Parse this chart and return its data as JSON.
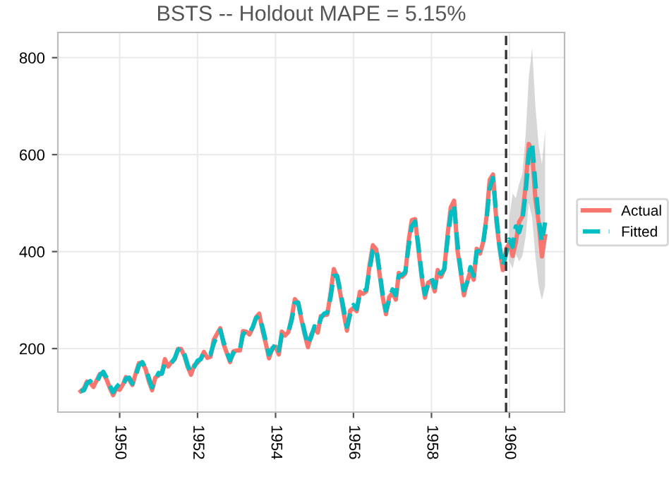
{
  "chart_data": {
    "type": "line",
    "title": "BSTS -- Holdout MAPE = 5.15%",
    "x": [
      "1949-01",
      "1949-02",
      "1949-03",
      "1949-04",
      "1949-05",
      "1949-06",
      "1949-07",
      "1949-08",
      "1949-09",
      "1949-10",
      "1949-11",
      "1949-12",
      "1950-01",
      "1950-02",
      "1950-03",
      "1950-04",
      "1950-05",
      "1950-06",
      "1950-07",
      "1950-08",
      "1950-09",
      "1950-10",
      "1950-11",
      "1950-12",
      "1951-01",
      "1951-02",
      "1951-03",
      "1951-04",
      "1951-05",
      "1951-06",
      "1951-07",
      "1951-08",
      "1951-09",
      "1951-10",
      "1951-11",
      "1951-12",
      "1952-01",
      "1952-02",
      "1952-03",
      "1952-04",
      "1952-05",
      "1952-06",
      "1952-07",
      "1952-08",
      "1952-09",
      "1952-10",
      "1952-11",
      "1952-12",
      "1953-01",
      "1953-02",
      "1953-03",
      "1953-04",
      "1953-05",
      "1953-06",
      "1953-07",
      "1953-08",
      "1953-09",
      "1953-10",
      "1953-11",
      "1953-12",
      "1954-01",
      "1954-02",
      "1954-03",
      "1954-04",
      "1954-05",
      "1954-06",
      "1954-07",
      "1954-08",
      "1954-09",
      "1954-10",
      "1954-11",
      "1954-12",
      "1955-01",
      "1955-02",
      "1955-03",
      "1955-04",
      "1955-05",
      "1955-06",
      "1955-07",
      "1955-08",
      "1955-09",
      "1955-10",
      "1955-11",
      "1955-12",
      "1956-01",
      "1956-02",
      "1956-03",
      "1956-04",
      "1956-05",
      "1956-06",
      "1956-07",
      "1956-08",
      "1956-09",
      "1956-10",
      "1956-11",
      "1956-12",
      "1957-01",
      "1957-02",
      "1957-03",
      "1957-04",
      "1957-05",
      "1957-06",
      "1957-07",
      "1957-08",
      "1957-09",
      "1957-10",
      "1957-11",
      "1957-12",
      "1958-01",
      "1958-02",
      "1958-03",
      "1958-04",
      "1958-05",
      "1958-06",
      "1958-07",
      "1958-08",
      "1958-09",
      "1958-10",
      "1958-11",
      "1958-12",
      "1959-01",
      "1959-02",
      "1959-03",
      "1959-04",
      "1959-05",
      "1959-06",
      "1959-07",
      "1959-08",
      "1959-09",
      "1959-10",
      "1959-11",
      "1959-12",
      "1960-01",
      "1960-02",
      "1960-03",
      "1960-04",
      "1960-05",
      "1960-06",
      "1960-07",
      "1960-08",
      "1960-09",
      "1960-10",
      "1960-11",
      "1960-12"
    ],
    "series": [
      {
        "name": "Actual",
        "color": "#f8766d",
        "line_style": "solid",
        "values": [
          112,
          118,
          132,
          129,
          121,
          135,
          148,
          148,
          136,
          119,
          104,
          118,
          115,
          126,
          141,
          135,
          125,
          149,
          170,
          170,
          158,
          133,
          114,
          140,
          145,
          150,
          178,
          163,
          172,
          178,
          199,
          199,
          184,
          162,
          146,
          166,
          171,
          180,
          193,
          181,
          183,
          218,
          230,
          242,
          209,
          191,
          172,
          194,
          196,
          196,
          236,
          235,
          229,
          243,
          264,
          272,
          237,
          211,
          180,
          201,
          204,
          188,
          235,
          227,
          234,
          264,
          302,
          293,
          259,
          229,
          203,
          229,
          242,
          233,
          267,
          269,
          270,
          315,
          364,
          347,
          312,
          274,
          237,
          278,
          284,
          277,
          317,
          313,
          318,
          374,
          413,
          405,
          355,
          306,
          271,
          306,
          315,
          301,
          356,
          348,
          355,
          422,
          465,
          467,
          404,
          347,
          305,
          336,
          340,
          318,
          362,
          348,
          363,
          435,
          491,
          505,
          404,
          359,
          310,
          337,
          360,
          342,
          406,
          396,
          420,
          472,
          548,
          559,
          463,
          407,
          362,
          405,
          417,
          391,
          419,
          461,
          472,
          535,
          622,
          606,
          508,
          461,
          390,
          432
        ]
      },
      {
        "name": "Fitted",
        "color": "#00bfc4",
        "line_style": "dashed",
        "values": [
          112,
          114,
          128,
          133,
          126,
          130,
          145,
          152,
          140,
          124,
          110,
          120,
          128,
          122,
          138,
          140,
          128,
          144,
          165,
          172,
          160,
          140,
          120,
          134,
          150,
          148,
          170,
          168,
          170,
          180,
          196,
          203,
          188,
          166,
          150,
          162,
          175,
          178,
          192,
          186,
          188,
          210,
          226,
          238,
          214,
          194,
          176,
          190,
          200,
          198,
          228,
          238,
          232,
          244,
          262,
          268,
          244,
          216,
          188,
          198,
          210,
          196,
          228,
          232,
          234,
          258,
          294,
          295,
          264,
          234,
          208,
          224,
          246,
          240,
          262,
          272,
          274,
          306,
          350,
          350,
          318,
          282,
          245,
          270,
          290,
          282,
          312,
          318,
          322,
          364,
          402,
          408,
          362,
          312,
          278,
          300,
          322,
          310,
          350,
          352,
          358,
          410,
          452,
          462,
          412,
          354,
          312,
          332,
          346,
          326,
          358,
          354,
          364,
          424,
          476,
          498,
          418,
          364,
          320,
          336,
          368,
          350,
          400,
          402,
          418,
          466,
          530,
          552,
          474,
          412,
          370,
          395,
          425,
          410,
          452,
          440,
          462,
          520,
          600,
          625,
          540,
          470,
          420,
          460
        ],
        "lower": [
          null,
          null,
          null,
          null,
          null,
          null,
          null,
          null,
          null,
          null,
          null,
          null,
          null,
          null,
          null,
          null,
          null,
          null,
          null,
          null,
          null,
          null,
          null,
          null,
          null,
          null,
          null,
          null,
          null,
          null,
          null,
          null,
          null,
          null,
          null,
          null,
          null,
          null,
          null,
          null,
          null,
          null,
          null,
          null,
          null,
          null,
          null,
          null,
          null,
          null,
          null,
          null,
          null,
          null,
          null,
          null,
          null,
          null,
          null,
          null,
          null,
          null,
          null,
          null,
          null,
          null,
          null,
          null,
          null,
          null,
          null,
          null,
          null,
          null,
          null,
          null,
          null,
          null,
          null,
          null,
          null,
          null,
          null,
          null,
          null,
          null,
          null,
          null,
          null,
          null,
          null,
          null,
          null,
          null,
          null,
          null,
          null,
          null,
          null,
          null,
          null,
          null,
          null,
          null,
          null,
          null,
          null,
          null,
          null,
          null,
          null,
          null,
          null,
          null,
          null,
          null,
          null,
          null,
          null,
          null,
          null,
          null,
          null,
          null,
          null,
          null,
          null,
          null,
          null,
          null,
          null,
          null,
          380,
          365,
          395,
          380,
          390,
          430,
          500,
          470,
          390,
          330,
          300,
          330
        ],
        "upper": [
          null,
          null,
          null,
          null,
          null,
          null,
          null,
          null,
          null,
          null,
          null,
          null,
          null,
          null,
          null,
          null,
          null,
          null,
          null,
          null,
          null,
          null,
          null,
          null,
          null,
          null,
          null,
          null,
          null,
          null,
          null,
          null,
          null,
          null,
          null,
          null,
          null,
          null,
          null,
          null,
          null,
          null,
          null,
          null,
          null,
          null,
          null,
          null,
          null,
          null,
          null,
          null,
          null,
          null,
          null,
          null,
          null,
          null,
          null,
          null,
          null,
          null,
          null,
          null,
          null,
          null,
          null,
          null,
          null,
          null,
          null,
          null,
          null,
          null,
          null,
          null,
          null,
          null,
          null,
          null,
          null,
          null,
          null,
          null,
          null,
          null,
          null,
          null,
          null,
          null,
          null,
          null,
          null,
          null,
          null,
          null,
          null,
          null,
          null,
          null,
          null,
          null,
          null,
          null,
          null,
          null,
          null,
          null,
          null,
          null,
          null,
          null,
          null,
          null,
          null,
          null,
          null,
          null,
          null,
          null,
          null,
          null,
          null,
          null,
          null,
          null,
          null,
          null,
          null,
          null,
          null,
          null,
          470,
          520,
          510,
          540,
          560,
          640,
          760,
          820,
          700,
          620,
          580,
          650
        ]
      }
    ],
    "xlim": [
      "1948-06",
      "1961-06"
    ],
    "ylim": [
      69,
      852
    ],
    "xticks": [
      {
        "value": "1950-01",
        "label": "1950"
      },
      {
        "value": "1952-01",
        "label": "1952"
      },
      {
        "value": "1954-01",
        "label": "1954"
      },
      {
        "value": "1956-01",
        "label": "1956"
      },
      {
        "value": "1958-01",
        "label": "1958"
      },
      {
        "value": "1960-01",
        "label": "1960"
      }
    ],
    "yticks": [
      200,
      400,
      600,
      800
    ],
    "ref_lines": [
      {
        "axis": "x",
        "value": "1959-12",
        "color": "#333333",
        "line_style": "dashed"
      }
    ],
    "grid": true,
    "legend": "right",
    "marker": "none"
  }
}
